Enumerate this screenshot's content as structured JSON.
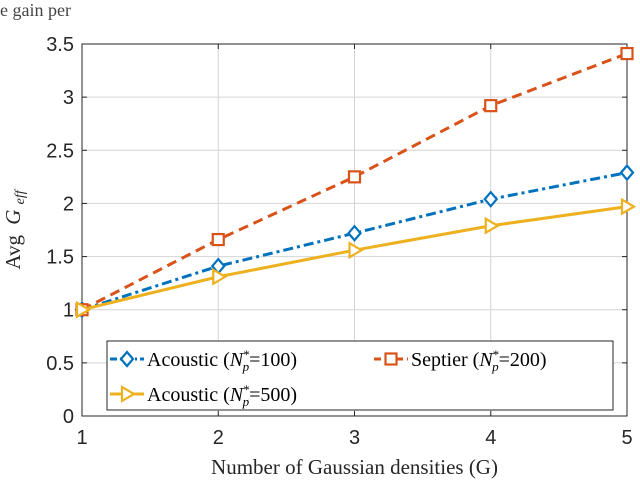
{
  "caption_fragment": "e gain per",
  "chart_data": {
    "type": "line",
    "x": [
      1,
      2,
      3,
      4,
      5
    ],
    "xlim": [
      1,
      5
    ],
    "ylim": [
      0,
      3.5
    ],
    "xticks": [
      "1",
      "2",
      "3",
      "4",
      "5"
    ],
    "yticks": [
      "0",
      "0.5",
      "1",
      "1.5",
      "2",
      "2.5",
      "3",
      "3.5"
    ],
    "xlabel": "Number of Gaussian densities (G)",
    "ylabel_main": "Avg",
    "ylabel_sym": "G",
    "ylabel_sub": "eff",
    "grid": true,
    "legend_position": "bottom-left",
    "series": [
      {
        "name": "Acoustic",
        "npstar": "100",
        "values": [
          1.0,
          1.41,
          1.72,
          2.04,
          2.29
        ],
        "color": "#0072BD",
        "dash": "dashdot",
        "marker": "diamond"
      },
      {
        "name": "Septier",
        "npstar": "200",
        "values": [
          1.0,
          1.66,
          2.25,
          2.92,
          3.41
        ],
        "color": "#D95319",
        "dash": "dashed",
        "marker": "square"
      },
      {
        "name": "Acoustic",
        "npstar": "500",
        "values": [
          1.0,
          1.31,
          1.56,
          1.79,
          1.97
        ],
        "color": "#EDB120",
        "dash": "solid",
        "marker": "triangle-right"
      }
    ]
  }
}
